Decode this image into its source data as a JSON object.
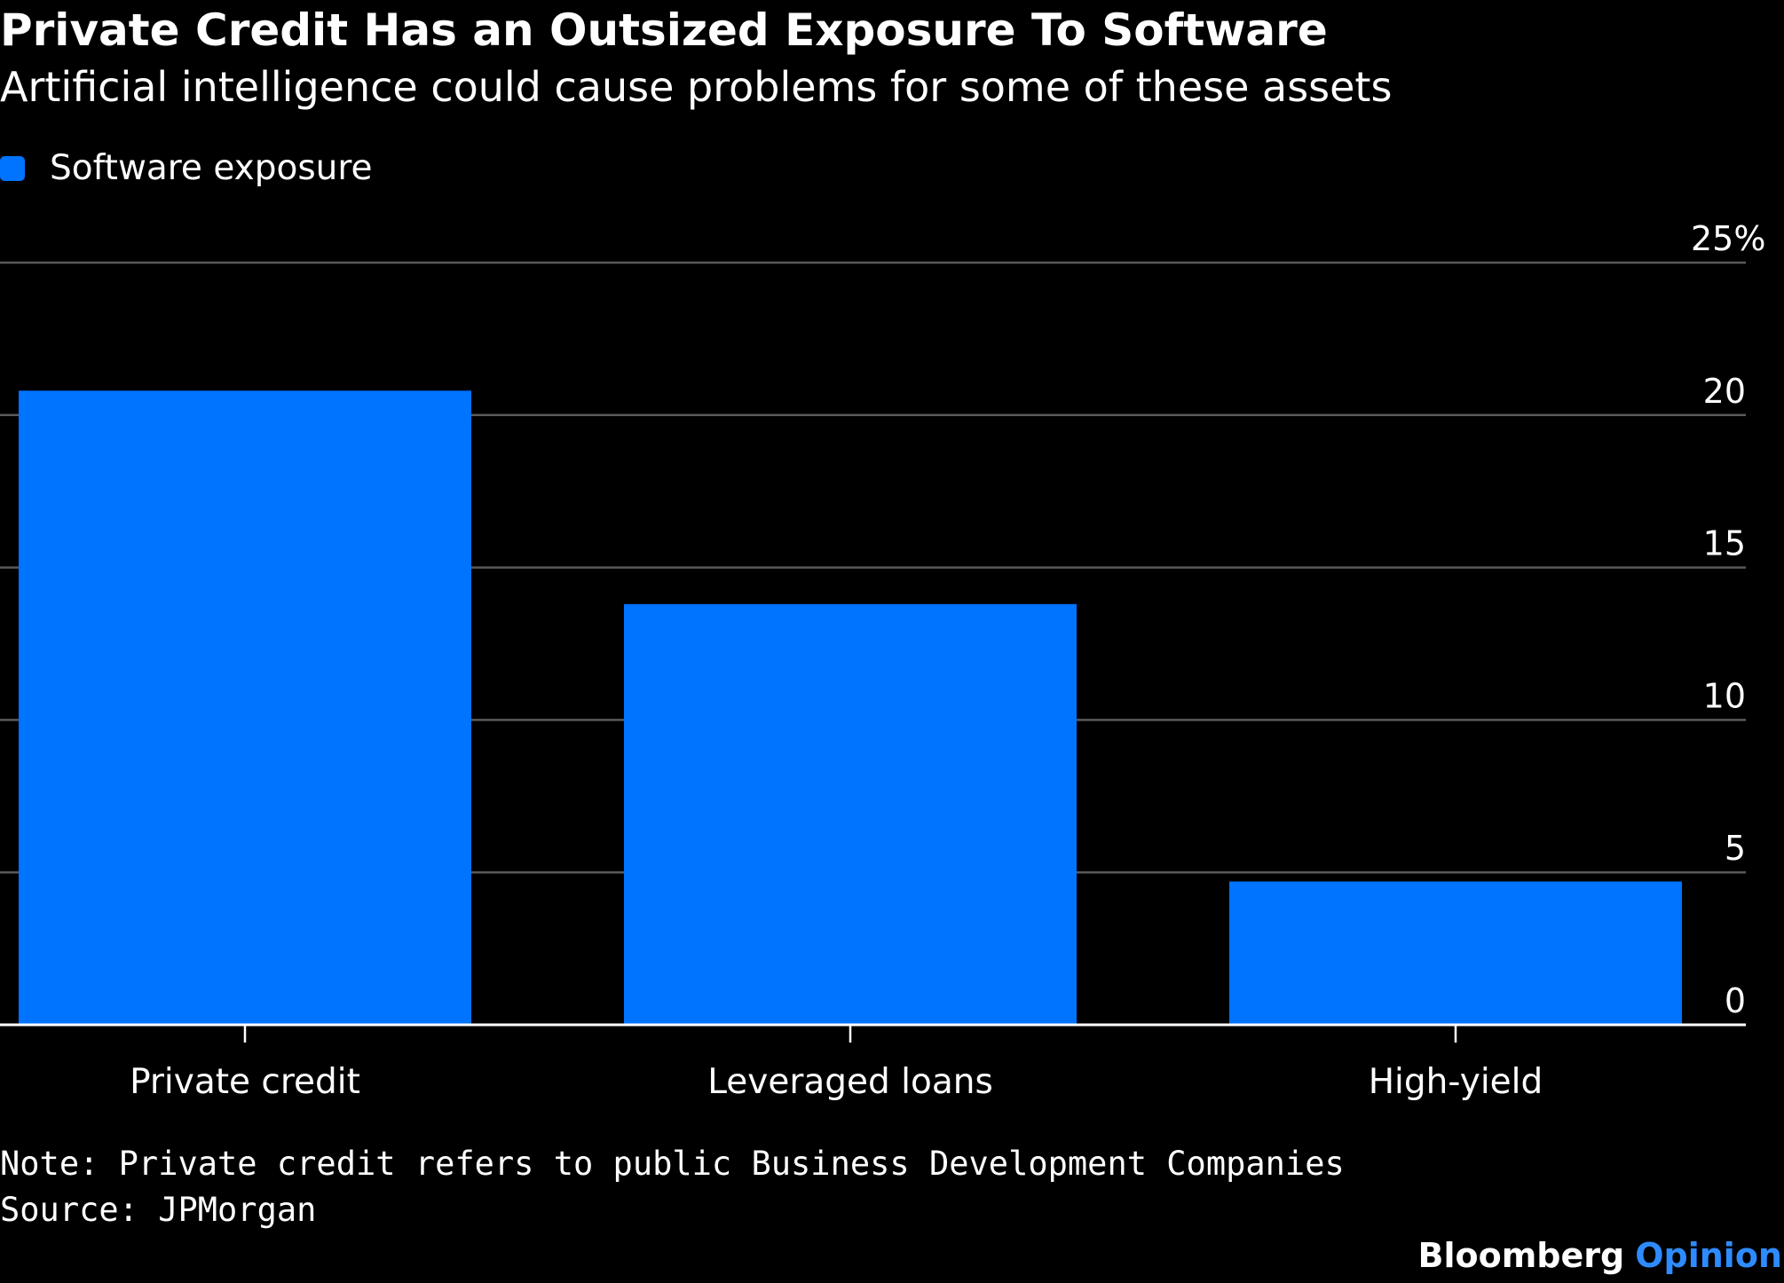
{
  "header": {
    "title": "Private Credit Has an Outsized Exposure To Software",
    "subtitle": "Artificial intelligence could cause problems for some of these assets"
  },
  "legend": {
    "items": [
      {
        "label": "Software exposure",
        "color": "#0073FF"
      }
    ]
  },
  "chart_data": {
    "type": "bar",
    "categories": [
      "Private credit",
      "Leveraged loans",
      "High-yield"
    ],
    "series": [
      {
        "name": "Software exposure",
        "values": [
          20.8,
          13.8,
          4.7
        ],
        "color": "#0073FF"
      }
    ],
    "ylim": [
      0,
      25
    ],
    "y_ticks": [
      0,
      5,
      10,
      15,
      20,
      25
    ],
    "y_tick_labels": [
      "0",
      "5",
      "10",
      "15",
      "20",
      "25%"
    ],
    "y_axis_side": "right",
    "grid": true,
    "legend_position": "top-left",
    "title": "Private Credit Has an Outsized Exposure To Software",
    "subtitle": "Artificial intelligence could cause problems for some of these assets"
  },
  "footer": {
    "note": "Note: Private credit refers to public Business Development Companies",
    "source": "Source: JPMorgan",
    "brand": "Bloomberg",
    "brand_suffix": "Opinion",
    "brand_suffix_color": "#2E8BFF"
  },
  "colors": {
    "background": "#000000",
    "text": "#FFFFFF",
    "gridline": "#5A5A5A",
    "axis": "#FFFFFF",
    "bar": "#0073FF"
  }
}
